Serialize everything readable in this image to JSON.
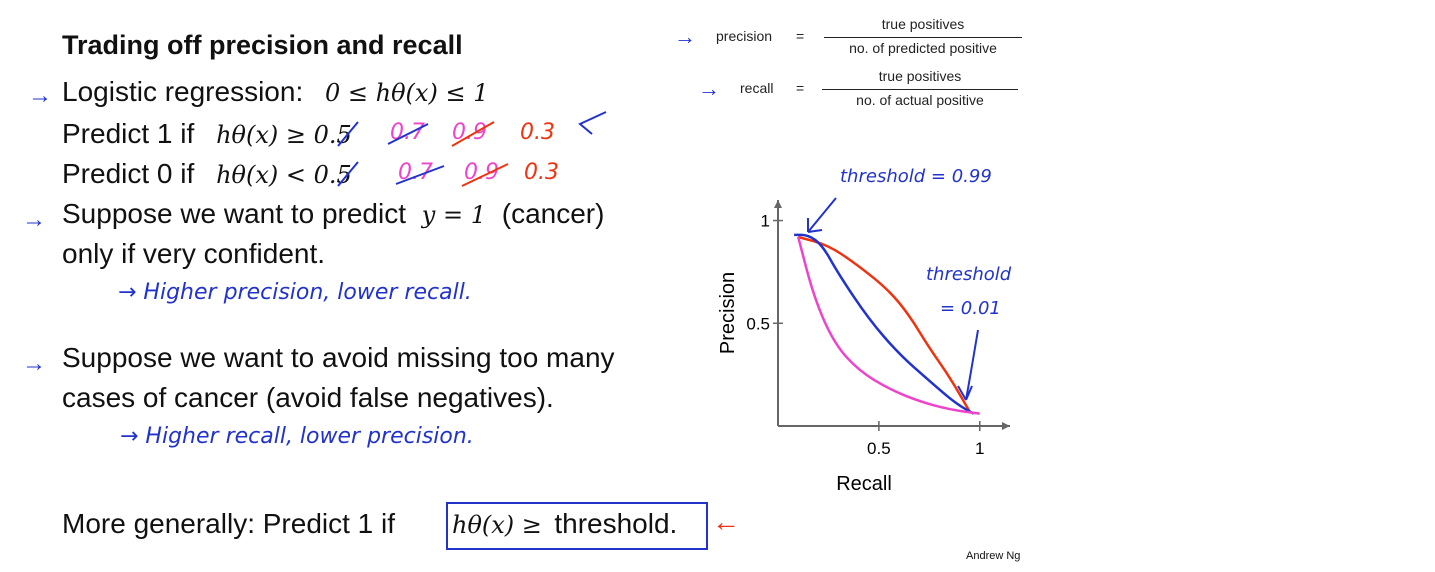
{
  "slide": {
    "title": "Trading off precision and recall",
    "author": "Andrew Ng"
  },
  "bullets": {
    "logistic": {
      "label": "Logistic regression:",
      "math": "0 ≤ hθ(x) ≤ 1"
    },
    "predict1": {
      "label": "Predict 1 if",
      "math": "hθ(x) ≥ 0.5",
      "alt1": "0.7",
      "alt2": "0.9",
      "alt3": "0.3"
    },
    "predict0": {
      "label": "Predict 0 if",
      "math": "hθ(x) < 0.5",
      "alt1": "0.7",
      "alt2": "0.9",
      "alt3": "0.3"
    },
    "confident": {
      "line1_pre": "Suppose we want to predict",
      "line1_math": "y = 1",
      "line1_post": "(cancer)",
      "line2": "only if very confident."
    },
    "note1": "→ Higher precision, lower recall.",
    "avoid": {
      "line1": "Suppose we want to avoid missing too many",
      "line2": "cases of cancer (avoid false negatives)."
    },
    "note2": "→ Higher recall, lower precision.",
    "general": {
      "label": "More generally: Predict 1 if",
      "math": "hθ(x) ≥",
      "word": "threshold."
    }
  },
  "definitions": {
    "precision": {
      "name": "precision",
      "eq": "=",
      "num": "true positives",
      "den": "no. of predicted positive"
    },
    "recall": {
      "name": "recall",
      "eq": "=",
      "num": "true positives",
      "den": "no. of actual positive"
    }
  },
  "annotations": {
    "high_threshold": "threshold = 0.99",
    "low_threshold_1": "threshold",
    "low_threshold_2": "= 0.01"
  },
  "colors": {
    "blue": "#2233cc",
    "red": "#ee3311",
    "magenta": "#ee44cc"
  },
  "chart_data": {
    "type": "line",
    "xlabel": "Recall",
    "ylabel": "Precision",
    "xlim": [
      0,
      1.15
    ],
    "ylim": [
      0,
      1.1
    ],
    "xticks": [
      "0.5",
      "1"
    ],
    "yticks": [
      "1",
      "0.5"
    ],
    "series": [
      {
        "color": "#ee3311",
        "x": [
          0.1,
          0.25,
          0.4,
          0.55,
          0.65,
          0.75,
          0.85,
          0.95
        ],
        "y": [
          0.92,
          0.88,
          0.78,
          0.66,
          0.54,
          0.38,
          0.24,
          0.07
        ]
      },
      {
        "color": "#2233cc",
        "x": [
          0.08,
          0.15,
          0.22,
          0.3,
          0.45,
          0.6,
          0.75,
          0.88,
          0.97
        ],
        "y": [
          0.93,
          0.93,
          0.88,
          0.74,
          0.52,
          0.35,
          0.22,
          0.11,
          0.06
        ]
      },
      {
        "color": "#ee44cc",
        "x": [
          0.1,
          0.18,
          0.28,
          0.4,
          0.55,
          0.7,
          0.85,
          1.0
        ],
        "y": [
          0.92,
          0.62,
          0.4,
          0.27,
          0.18,
          0.12,
          0.08,
          0.06
        ]
      }
    ]
  }
}
